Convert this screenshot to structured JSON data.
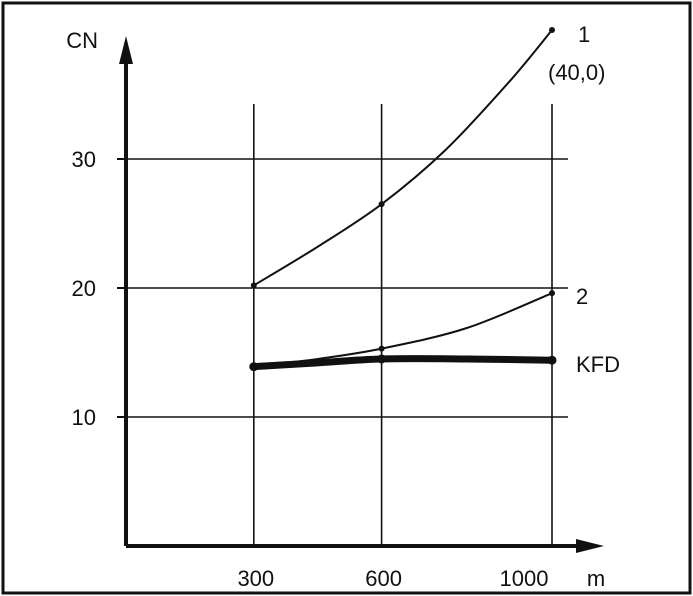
{
  "chart_data": {
    "type": "line",
    "title": "",
    "xlabel": "m",
    "ylabel": "CN",
    "x_ticks": [
      300,
      600,
      1000
    ],
    "x_tick_labels": [
      "300",
      "600",
      "1000"
    ],
    "y_ticks": [
      10,
      20,
      30
    ],
    "y_tick_labels": [
      "10",
      "20",
      "30"
    ],
    "xlim": [
      0,
      1000
    ],
    "ylim": [
      0,
      40
    ],
    "grid": true,
    "series": [
      {
        "name": "1",
        "annotation": "(40,0)",
        "x": [
          300,
          450,
          600,
          750,
          900,
          1000
        ],
        "y": [
          20.2,
          23.2,
          26.5,
          30.7,
          36.0,
          40.0
        ]
      },
      {
        "name": "2",
        "x": [
          300,
          450,
          600,
          800,
          1000
        ],
        "y": [
          13.9,
          14.5,
          15.3,
          16.9,
          19.6
        ]
      },
      {
        "name": "KFD",
        "x": [
          300,
          450,
          600,
          800,
          1000
        ],
        "y": [
          13.9,
          14.2,
          14.5,
          14.5,
          14.4
        ]
      }
    ]
  },
  "colors": {
    "ink": "#111111",
    "background": "#ffffff"
  }
}
